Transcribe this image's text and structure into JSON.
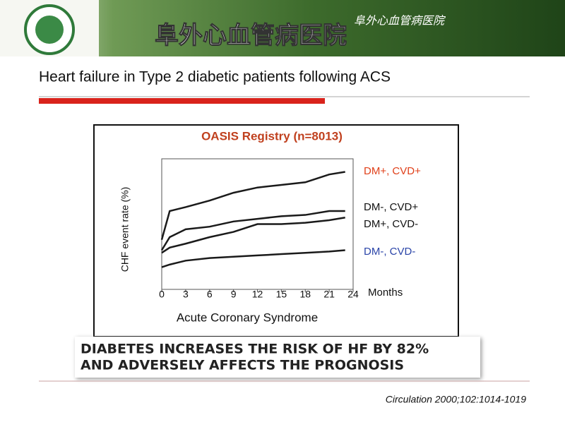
{
  "header": {
    "title": "阜外心血管病医院",
    "subtitle": "阜外心血管病医院"
  },
  "slide_title": "Heart failure in Type 2 diabetic patients following ACS",
  "chart_data": {
    "type": "line",
    "title": "OASIS Registry (n=8013)",
    "y_label": "CHF event rate (%)",
    "x_label": "Acute Coronary Syndrome",
    "x_unit": "Months",
    "x": [
      0,
      1,
      3,
      6,
      9,
      12,
      15,
      18,
      21,
      23
    ],
    "xlim": [
      0,
      24
    ],
    "xticks": [
      0,
      3,
      6,
      9,
      12,
      15,
      18,
      21,
      24
    ],
    "ylim": [
      0,
      5
    ],
    "series": [
      {
        "name": "DM+, CVD+",
        "color": "#1a1a1a",
        "label_color": "#e0401a",
        "values": [
          1.9,
          3.0,
          3.15,
          3.4,
          3.7,
          3.9,
          4.0,
          4.1,
          4.4,
          4.5
        ]
      },
      {
        "name": "DM-, CVD+",
        "color": "#1a1a1a",
        "label_color": "#111111",
        "values": [
          1.5,
          2.0,
          2.3,
          2.4,
          2.6,
          2.7,
          2.8,
          2.85,
          3.0,
          3.0
        ]
      },
      {
        "name": "DM+, CVD-",
        "color": "#1a1a1a",
        "label_color": "#111111",
        "values": [
          1.4,
          1.6,
          1.75,
          2.0,
          2.2,
          2.5,
          2.5,
          2.55,
          2.65,
          2.75
        ]
      },
      {
        "name": "DM-, CVD-",
        "color": "#1a1a1a",
        "label_color": "#2a44a8",
        "values": [
          0.85,
          0.95,
          1.1,
          1.2,
          1.25,
          1.3,
          1.35,
          1.4,
          1.45,
          1.5
        ]
      }
    ]
  },
  "banner": [
    "DIABETES INCREASES THE RISK OF HF BY 82%",
    "AND ADVERSELY AFFECTS THE PROGNOSIS"
  ],
  "citation": "Circulation 2000;102:1014-1019"
}
